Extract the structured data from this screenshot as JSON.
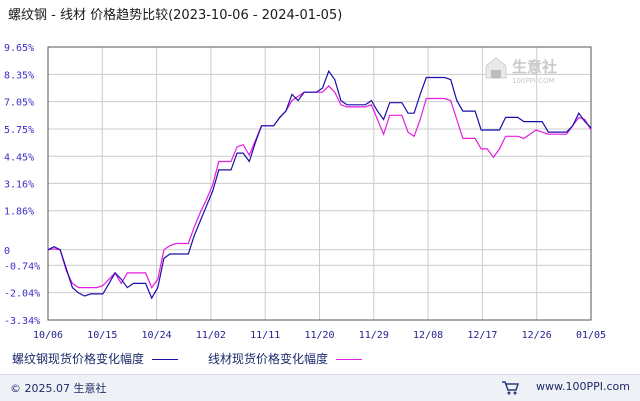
{
  "title": "螺纹钢 - 线材 价格趋势比较(2023-10-06 - 2024-01-05)",
  "logo": {
    "name": "生意社",
    "sub": "100PPI.COM"
  },
  "footer": {
    "copyright": "© 2025.07 生意社",
    "site": "www.100PPI.com"
  },
  "colors": {
    "series1": "#1a0fa8",
    "series2": "#e61ce0",
    "grid": "#cccccc",
    "frame": "#555555"
  },
  "chart_data": {
    "type": "line",
    "title": "螺纹钢 - 线材 价格趋势比较(2023-10-06 - 2024-01-05)",
    "x_start": "10/06",
    "x_end": "01/05",
    "x_ticks": [
      "10/06",
      "10/15",
      "10/24",
      "11/02",
      "11/11",
      "11/20",
      "11/29",
      "12/08",
      "12/17",
      "12/26",
      "01/05"
    ],
    "y_ticks": [
      "9.65%",
      "8.35%",
      "7.05%",
      "5.75%",
      "4.45%",
      "3.16%",
      "1.86%",
      "0",
      "-0.74%",
      "-2.04%",
      "-3.34%"
    ],
    "ylim": [
      -3.34,
      9.65
    ],
    "series": [
      {
        "name": "螺纹钢现货价格变化幅度",
        "values": [
          0,
          0.15,
          0,
          -0.9,
          -1.8,
          -2.05,
          -2.2,
          -2.1,
          -2.1,
          -2.1,
          -1.6,
          -1.1,
          -1.4,
          -1.8,
          -1.6,
          -1.6,
          -1.6,
          -2.3,
          -1.8,
          -0.4,
          -0.2,
          -0.2,
          -0.2,
          -0.2,
          0.7,
          1.4,
          2.1,
          2.8,
          3.8,
          3.8,
          3.8,
          4.6,
          4.6,
          4.2,
          5.1,
          5.9,
          5.9,
          5.9,
          6.3,
          6.6,
          7.4,
          7.1,
          7.5,
          7.5,
          7.5,
          7.7,
          8.5,
          8.1,
          7.1,
          6.9,
          6.9,
          6.9,
          6.9,
          7.1,
          6.6,
          6.2,
          7.0,
          7.0,
          7.0,
          6.5,
          6.5,
          7.4,
          8.2,
          8.2,
          8.2,
          8.2,
          8.1,
          7.1,
          6.6,
          6.6,
          6.6,
          5.7,
          5.7,
          5.7,
          5.7,
          6.3,
          6.3,
          6.3,
          6.1,
          6.1,
          6.1,
          6.1,
          5.6,
          5.6,
          5.6,
          5.6,
          5.9,
          6.5,
          6.1,
          5.8
        ]
      },
      {
        "name": "线材现货价格变化幅度",
        "values": [
          0,
          0.05,
          0,
          -1.0,
          -1.6,
          -1.8,
          -1.8,
          -1.8,
          -1.8,
          -1.7,
          -1.4,
          -1.1,
          -1.6,
          -1.1,
          -1.1,
          -1.1,
          -1.1,
          -1.8,
          -1.4,
          0,
          0.2,
          0.3,
          0.3,
          0.3,
          1.1,
          1.8,
          2.4,
          3.1,
          4.2,
          4.2,
          4.2,
          4.9,
          5.0,
          4.5,
          5.2,
          5.9,
          5.9,
          5.9,
          6.3,
          6.6,
          7.1,
          7.3,
          7.5,
          7.5,
          7.5,
          7.5,
          7.8,
          7.5,
          6.9,
          6.8,
          6.8,
          6.8,
          6.8,
          6.9,
          6.2,
          5.5,
          6.4,
          6.4,
          6.4,
          5.6,
          5.4,
          6.2,
          7.2,
          7.2,
          7.2,
          7.2,
          7.1,
          6.2,
          5.3,
          5.3,
          5.3,
          4.8,
          4.8,
          4.4,
          4.8,
          5.4,
          5.4,
          5.4,
          5.3,
          5.5,
          5.7,
          5.6,
          5.5,
          5.5,
          5.5,
          5.5,
          5.9,
          6.3,
          6.2,
          5.7
        ]
      }
    ],
    "grid": true,
    "legend": "bottom"
  }
}
